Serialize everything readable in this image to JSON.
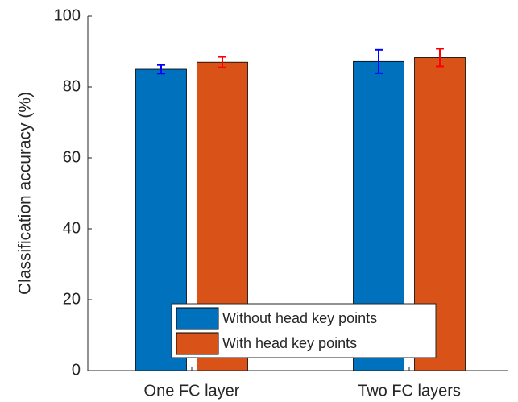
{
  "chart_data": {
    "type": "bar",
    "categories": [
      "One FC layer",
      "Two FC layers"
    ],
    "series": [
      {
        "name": "Without head key points",
        "values": [
          85.0,
          87.2
        ],
        "errors": [
          1.2,
          3.3
        ],
        "color": "#0072BD",
        "error_color": "#0000FF"
      },
      {
        "name": "With head key points",
        "values": [
          87.0,
          88.3
        ],
        "errors": [
          1.5,
          2.5
        ],
        "color": "#D95319",
        "error_color": "#FF0000"
      }
    ],
    "xlabel": "",
    "ylabel": "Classification accuracy (%)",
    "ylim": [
      0,
      100
    ],
    "yticks": [
      0,
      20,
      40,
      60,
      80,
      100
    ],
    "grid": false,
    "legend_position": "bottom-center"
  }
}
